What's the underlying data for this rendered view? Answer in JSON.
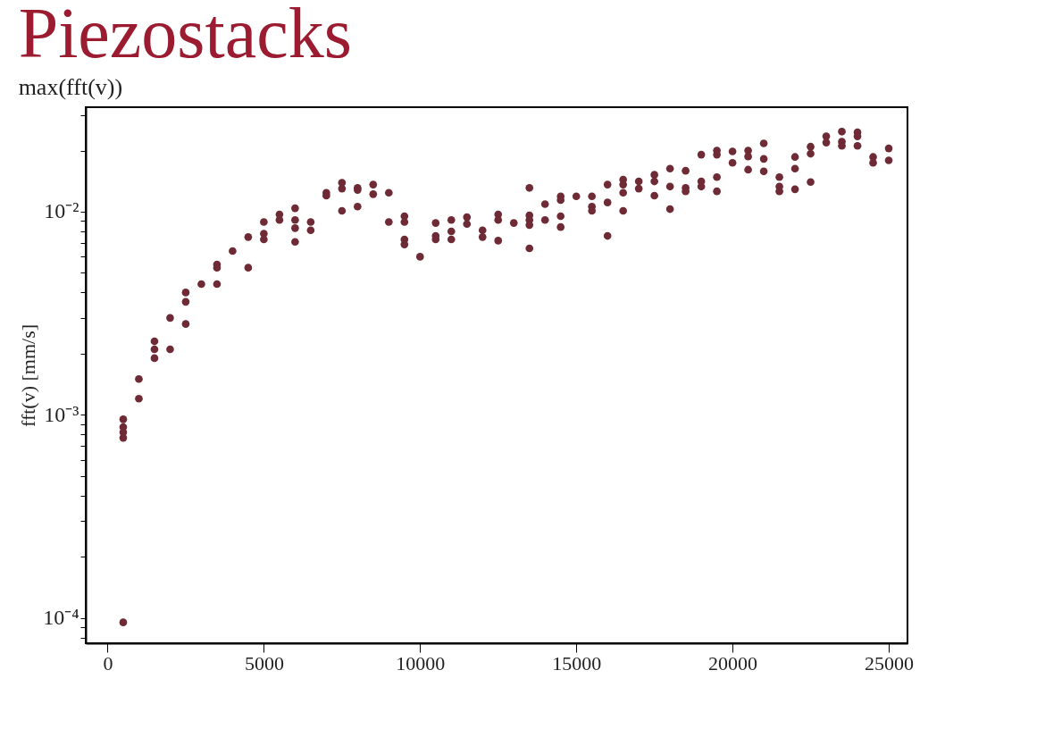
{
  "chart_data": {
    "type": "scatter",
    "title": "Piezostacks",
    "subtitle": "max(fft(v))",
    "ylabel": "fft(v) [mm/s]",
    "log": "y",
    "grid": false,
    "legend": false,
    "marker": "circle",
    "xlim": [
      -700,
      25600
    ],
    "xticks": [
      0,
      5000,
      10000,
      15000,
      20000,
      25000
    ],
    "ylim": [
      7.5e-05,
      0.0327
    ],
    "yticks": [
      {
        "value": 8e-05,
        "label": null
      },
      {
        "value": 9e-05,
        "label": null
      },
      {
        "value": 0.0001,
        "label": "10⁻⁴"
      },
      {
        "value": 0.0002,
        "label": null
      },
      {
        "value": 0.0003,
        "label": null
      },
      {
        "value": 0.0004,
        "label": null
      },
      {
        "value": 0.0005,
        "label": null
      },
      {
        "value": 0.0006,
        "label": null
      },
      {
        "value": 0.0007,
        "label": null
      },
      {
        "value": 0.0008,
        "label": null
      },
      {
        "value": 0.0009,
        "label": null
      },
      {
        "value": 0.001,
        "label": "10⁻³"
      },
      {
        "value": 0.002,
        "label": null
      },
      {
        "value": 0.003,
        "label": null
      },
      {
        "value": 0.004,
        "label": null
      },
      {
        "value": 0.005,
        "label": null
      },
      {
        "value": 0.006,
        "label": null
      },
      {
        "value": 0.007,
        "label": null
      },
      {
        "value": 0.008,
        "label": null
      },
      {
        "value": 0.009,
        "label": null
      },
      {
        "value": 0.01,
        "label": "10⁻²"
      },
      {
        "value": 0.02,
        "label": null
      },
      {
        "value": 0.03,
        "label": null
      }
    ],
    "series": [
      {
        "color": "#6e2a35",
        "x": [
          500,
          500,
          500,
          500,
          500,
          1000,
          1000,
          1500,
          1500,
          1500,
          2000,
          2000,
          2500,
          2500,
          2500,
          3000,
          3500,
          3500,
          3500,
          4000,
          4500,
          4500,
          5000,
          5000,
          5000,
          5500,
          5500,
          6000,
          6000,
          6000,
          6000,
          6500,
          6500,
          7000,
          7000,
          7500,
          7500,
          7500,
          8000,
          8000,
          8000,
          8500,
          8500,
          9000,
          9000,
          9500,
          9500,
          9500,
          9500,
          10000,
          10500,
          10500,
          10500,
          11000,
          11000,
          11000,
          11500,
          11500,
          12000,
          12000,
          12500,
          12500,
          12500,
          13000,
          13500,
          13500,
          13500,
          13500,
          13500,
          14000,
          14000,
          14500,
          14500,
          14500,
          14500,
          15000,
          15500,
          15500,
          15500,
          16000,
          16000,
          16000,
          16500,
          16500,
          16500,
          16500,
          17000,
          17000,
          17500,
          17500,
          17500,
          18000,
          18000,
          18000,
          18500,
          18500,
          18500,
          19000,
          19000,
          19000,
          19500,
          19500,
          19500,
          19500,
          20000,
          20000,
          20500,
          20500,
          20500,
          21000,
          21000,
          21000,
          21500,
          21500,
          21500,
          22000,
          22000,
          22000,
          22500,
          22500,
          22500,
          23000,
          23000,
          23500,
          23500,
          23500,
          24000,
          24000,
          24000,
          24500,
          24500,
          25000,
          25000
        ],
        "values": [
          0.00095,
          0.00087,
          0.00082,
          0.00077,
          9.5e-05,
          0.0015,
          0.0012,
          0.0023,
          0.0021,
          0.0019,
          0.003,
          0.0021,
          0.004,
          0.0036,
          0.0028,
          0.0044,
          0.0055,
          0.0053,
          0.0044,
          0.0064,
          0.0075,
          0.0053,
          0.0089,
          0.0078,
          0.0073,
          0.0097,
          0.0091,
          0.0104,
          0.0091,
          0.0083,
          0.0071,
          0.0089,
          0.0081,
          0.0124,
          0.012,
          0.0139,
          0.013,
          0.0101,
          0.0131,
          0.0128,
          0.0106,
          0.0136,
          0.0122,
          0.0124,
          0.0089,
          0.0095,
          0.0089,
          0.0073,
          0.0069,
          0.006,
          0.0088,
          0.0076,
          0.0073,
          0.0091,
          0.008,
          0.0073,
          0.0094,
          0.0087,
          0.0081,
          0.0075,
          0.0097,
          0.0091,
          0.0072,
          0.0088,
          0.0131,
          0.0096,
          0.0091,
          0.0086,
          0.0066,
          0.0109,
          0.0091,
          0.0119,
          0.0114,
          0.0095,
          0.0084,
          0.0119,
          0.0119,
          0.0106,
          0.0101,
          0.0136,
          0.0111,
          0.0076,
          0.0144,
          0.0136,
          0.0124,
          0.0101,
          0.0141,
          0.013,
          0.0152,
          0.0141,
          0.012,
          0.0163,
          0.0133,
          0.0103,
          0.0159,
          0.0131,
          0.0126,
          0.0191,
          0.0141,
          0.0133,
          0.02,
          0.0191,
          0.0148,
          0.0126,
          0.0198,
          0.0174,
          0.02,
          0.0187,
          0.0161,
          0.0217,
          0.0182,
          0.0158,
          0.0148,
          0.0133,
          0.0126,
          0.0186,
          0.0163,
          0.0129,
          0.0209,
          0.0193,
          0.014,
          0.0235,
          0.0219,
          0.0248,
          0.0221,
          0.0211,
          0.0246,
          0.0235,
          0.0211,
          0.0186,
          0.0174,
          0.0205,
          0.0179
        ]
      }
    ]
  }
}
